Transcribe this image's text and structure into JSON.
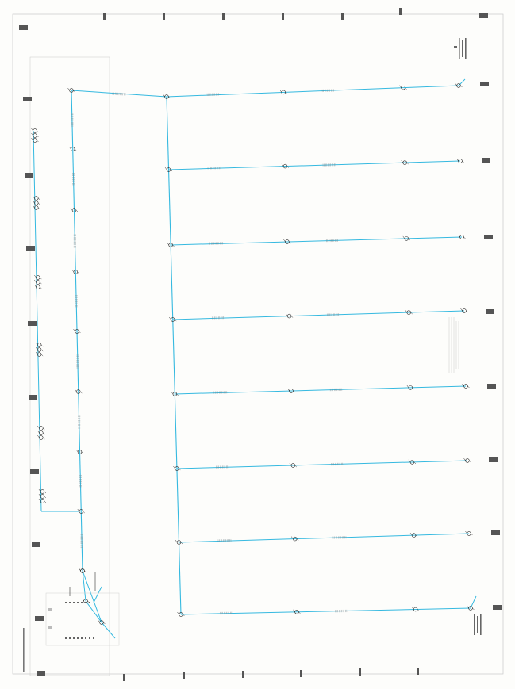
{
  "drawing": {
    "pipe_color": "#35b9e0",
    "border_color": "#9a9a9a",
    "block_color": "#444444",
    "sprinkler_color": "#222222"
  },
  "branch_lines": [
    {
      "id": "row-1",
      "node_labels": [
        "",
        "",
        "",
        ""
      ]
    },
    {
      "id": "row-2",
      "node_labels": [
        "",
        "",
        "",
        ""
      ]
    },
    {
      "id": "row-3",
      "node_labels": [
        "",
        "",
        "",
        ""
      ]
    },
    {
      "id": "row-4",
      "node_labels": [
        "",
        "",
        "",
        ""
      ]
    },
    {
      "id": "row-5",
      "node_labels": [
        "",
        "",
        "",
        ""
      ]
    },
    {
      "id": "row-6",
      "node_labels": [
        "",
        "",
        "",
        ""
      ]
    },
    {
      "id": "row-7",
      "node_labels": [
        "",
        "",
        "",
        ""
      ]
    },
    {
      "id": "row-8",
      "node_labels": [
        "",
        "",
        "",
        ""
      ]
    }
  ],
  "title_notes": {
    "top_right": "",
    "bottom_right": "",
    "bottom_left": ""
  },
  "legend": {
    "icon": "valve-cluster-icon"
  }
}
